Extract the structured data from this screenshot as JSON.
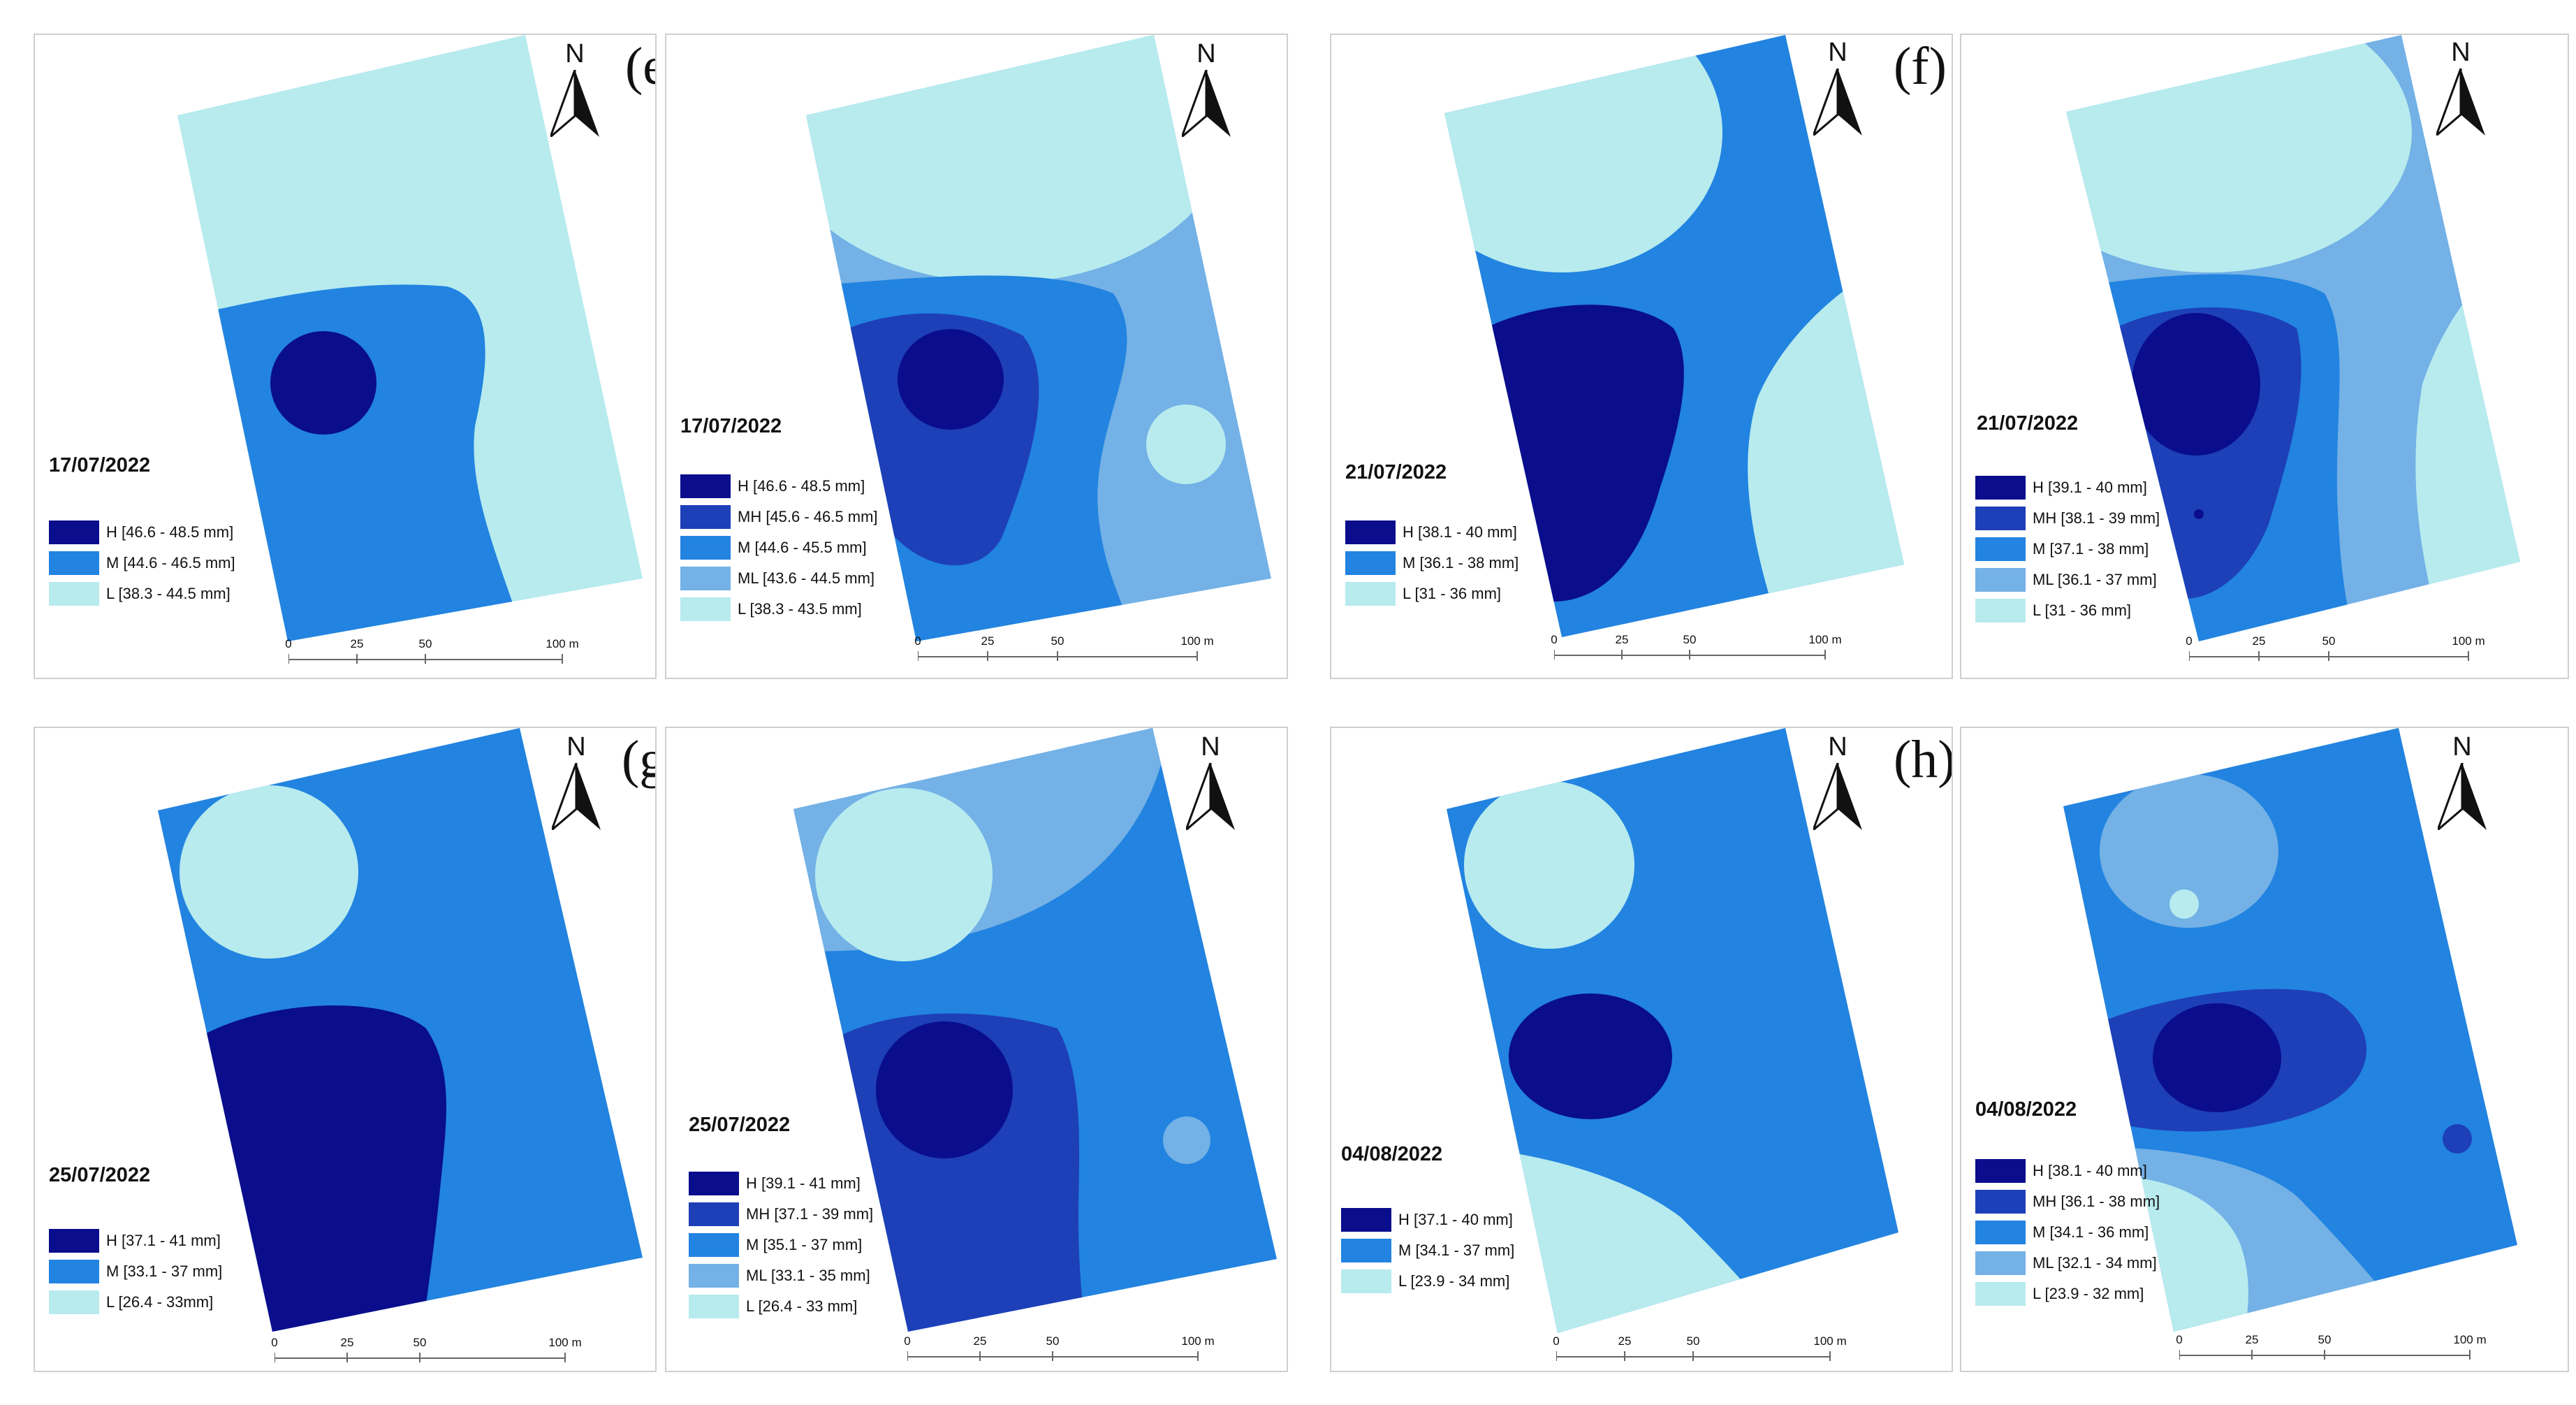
{
  "panels": [
    {
      "id": "p1",
      "group": "e",
      "date": "17/07/2022",
      "legend": [
        "H [46.6 - 48.5 mm]",
        "M [44.6 - 46.5 mm]",
        "L [38.3 - 44.5 mm]"
      ],
      "colors": [
        "#0a0d8c",
        "#2283e0",
        "#b7ebee"
      ]
    },
    {
      "id": "p2",
      "group": "e",
      "date": "17/07/2022",
      "legend": [
        "H [46.6 - 48.5 mm]",
        "MH [45.6 - 46.5 mm]",
        "M [44.6 - 45.5 mm]",
        "ML [43.6 - 44.5 mm]",
        "L [38.3 - 43.5 mm]"
      ],
      "colors": [
        "#0a0d8c",
        "#1d3fb8",
        "#2283e0",
        "#73b1e6",
        "#b7ebee"
      ]
    },
    {
      "id": "p3",
      "group": "f",
      "date": "21/07/2022",
      "legend": [
        "H [38.1 - 40 mm]",
        "M [36.1 - 38 mm]",
        "L [31 - 36 mm]"
      ],
      "colors": [
        "#0a0d8c",
        "#2283e0",
        "#b7ebee"
      ]
    },
    {
      "id": "p4",
      "group": "f",
      "date": "21/07/2022",
      "legend": [
        "H [39.1 - 40 mm]",
        "MH [38.1 - 39 mm]",
        "M [37.1 - 38 mm]",
        "ML [36.1 - 37 mm]",
        "L [31 - 36 mm]"
      ],
      "colors": [
        "#0a0d8c",
        "#1d3fb8",
        "#2283e0",
        "#73b1e6",
        "#b7ebee"
      ]
    },
    {
      "id": "p5",
      "group": "g",
      "date": "25/07/2022",
      "legend": [
        "H [37.1 - 41 mm]",
        "M [33.1 - 37 mm]",
        "L [26.4 - 33mm]"
      ],
      "colors": [
        "#0a0d8c",
        "#2283e0",
        "#b7ebee"
      ]
    },
    {
      "id": "p6",
      "group": "g",
      "date": "25/07/2022",
      "legend": [
        "H [39.1 - 41 mm]",
        "MH [37.1 - 39 mm]",
        "M [35.1 - 37 mm]",
        "ML [33.1 - 35 mm]",
        "L [26.4 - 33 mm]"
      ],
      "colors": [
        "#0a0d8c",
        "#1d3fb8",
        "#2283e0",
        "#73b1e6",
        "#b7ebee"
      ]
    },
    {
      "id": "p7",
      "group": "h",
      "date": "04/08/2022",
      "legend": [
        "H [37.1 - 40 mm]",
        "M [34.1 - 37 mm]",
        "L [23.9 - 34 mm]"
      ],
      "colors": [
        "#0a0d8c",
        "#2283e0",
        "#b7ebee"
      ]
    },
    {
      "id": "p8",
      "group": "h",
      "date": "04/08/2022",
      "legend": [
        "H [38.1 - 40 mm]",
        "MH [36.1 - 38 mm]",
        "M [34.1 - 36 mm]",
        "ML [32.1 - 34 mm]",
        "L [23.9 - 32 mm]"
      ],
      "colors": [
        "#0a0d8c",
        "#1d3fb8",
        "#2283e0",
        "#73b1e6",
        "#b7ebee"
      ]
    }
  ],
  "group_labels": {
    "e": "(e)",
    "f": "(f)",
    "g": "(g)",
    "h": "(h)"
  },
  "north_label": "N",
  "scale_ticks": [
    "0",
    "25",
    "50",
    "100 m"
  ]
}
